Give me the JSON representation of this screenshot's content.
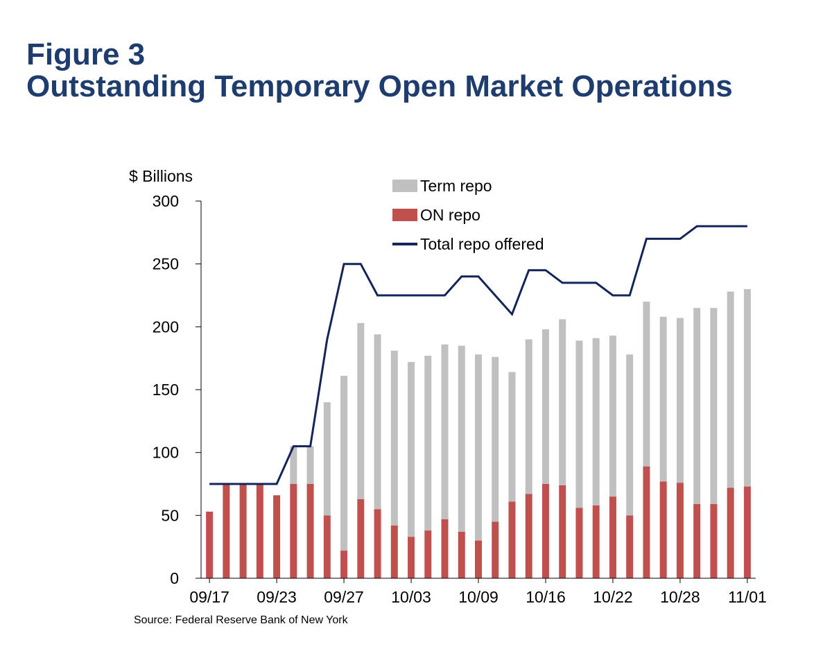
{
  "figure": {
    "label": "Figure 3",
    "title": "Outstanding Temporary Open Market Operations",
    "source": "Source: Federal Reserve Bank of New York"
  },
  "chart_data": {
    "type": "bar",
    "stacked": true,
    "title": "Outstanding Temporary Open Market Operations",
    "ylabel": "$ Billions",
    "xlabel": "",
    "ylim": [
      0,
      300
    ],
    "yticks": [
      0,
      50,
      100,
      150,
      200,
      250,
      300
    ],
    "xtick_labels": [
      "09/17",
      "09/23",
      "09/27",
      "10/03",
      "10/09",
      "10/16",
      "10/22",
      "10/28",
      "11/01"
    ],
    "xtick_positions": [
      0,
      4,
      8,
      12,
      16,
      20,
      24,
      28,
      32
    ],
    "grid": false,
    "legend_position": "top-center",
    "colors": {
      "term_repo": "#c0c0c0",
      "on_repo": "#c0504d",
      "total_repo_offered": "#14245a"
    },
    "series": [
      {
        "name": "ON repo",
        "kind": "bar",
        "values": [
          53,
          75,
          75,
          75,
          66,
          75,
          75,
          50,
          22,
          63,
          55,
          42,
          33,
          38,
          47,
          37,
          30,
          45,
          61,
          67,
          75,
          74,
          56,
          58,
          65,
          50,
          89,
          77,
          76,
          59,
          59,
          72,
          73
        ]
      },
      {
        "name": "Term repo",
        "kind": "bar",
        "values": [
          0,
          0,
          0,
          0,
          0,
          30,
          30,
          90,
          139,
          140,
          139,
          139,
          139,
          139,
          139,
          148,
          148,
          131,
          103,
          123,
          123,
          132,
          133,
          133,
          128,
          128,
          131,
          131,
          131,
          156,
          156,
          156,
          157
        ]
      },
      {
        "name": "Total repo offered",
        "kind": "line",
        "values": [
          75,
          75,
          75,
          75,
          75,
          105,
          105,
          190,
          250,
          250,
          225,
          225,
          225,
          225,
          225,
          240,
          240,
          225,
          210,
          245,
          245,
          235,
          235,
          235,
          225,
          225,
          270,
          270,
          270,
          280,
          280,
          280,
          280
        ]
      }
    ]
  }
}
